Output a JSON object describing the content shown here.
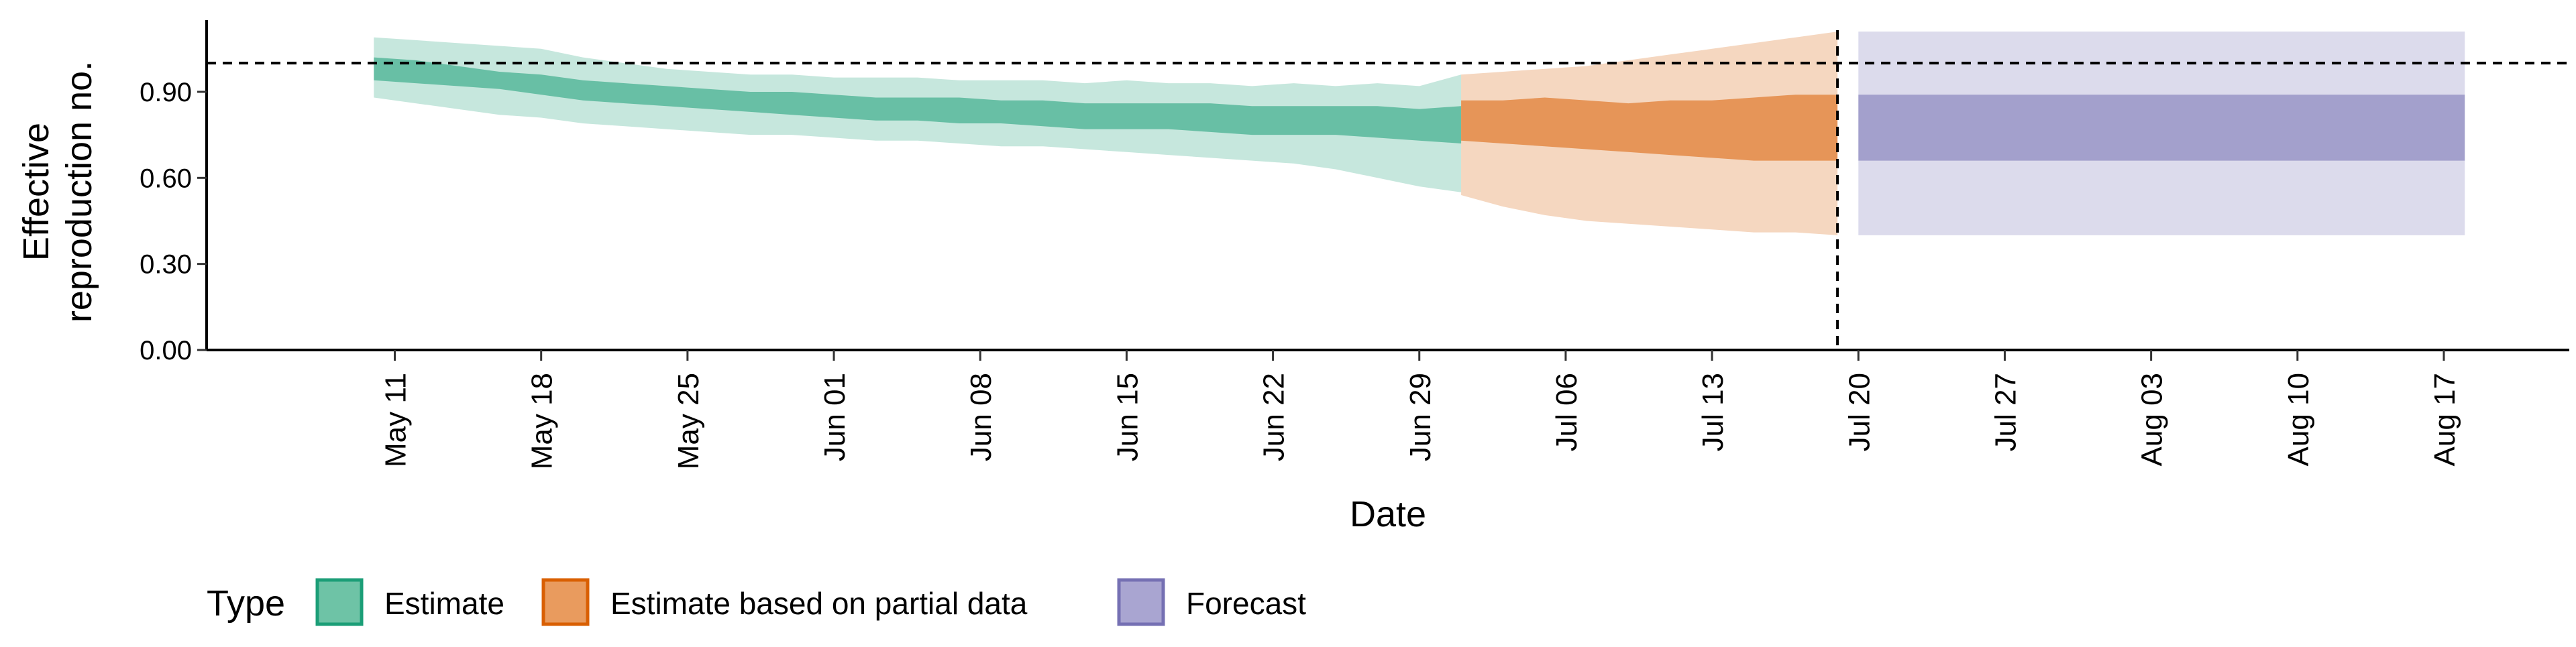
{
  "chart_data": {
    "type": "area",
    "xlabel": "Date",
    "ylabel_lines": [
      "Effective",
      "reproduction no."
    ],
    "ylim": [
      0,
      1.15
    ],
    "xlim": [
      "2020-05-02",
      "2020-08-23"
    ],
    "y_ticks": [
      0,
      0.3,
      0.6,
      0.9
    ],
    "y_tick_labels": [
      "0.00",
      "0.30",
      "0.60",
      "0.90"
    ],
    "x_ticks": [
      "2020-05-11",
      "2020-05-18",
      "2020-05-25",
      "2020-06-01",
      "2020-06-08",
      "2020-06-15",
      "2020-06-22",
      "2020-06-29",
      "2020-07-06",
      "2020-07-13",
      "2020-07-20",
      "2020-07-27",
      "2020-08-03",
      "2020-08-10",
      "2020-08-17"
    ],
    "x_tick_labels": [
      "May 11",
      "May 18",
      "May 25",
      "Jun 01",
      "Jun 08",
      "Jun 15",
      "Jun 22",
      "Jun 29",
      "Jul 06",
      "Jul 13",
      "Jul 20",
      "Jul 27",
      "Aug 03",
      "Aug 10",
      "Aug 17"
    ],
    "reference_line": {
      "y": 1.0,
      "style": "dashed"
    },
    "vertical_line": {
      "x": "2020-07-19",
      "style": "dashed"
    },
    "grid": false,
    "legend": {
      "title": "Type",
      "position": "bottom",
      "items": [
        {
          "label": "Estimate",
          "fill": "#6ec3a6",
          "border": "#1b9e77"
        },
        {
          "label": "Estimate based on partial data",
          "fill": "#e99b5e",
          "border": "#d95f02"
        },
        {
          "label": "Forecast",
          "fill": "#a9a5d1",
          "border": "#7570b3"
        }
      ]
    },
    "series": [
      {
        "name": "Estimate",
        "color": "#1b9e77",
        "x": [
          "2020-05-10",
          "2020-05-12",
          "2020-05-14",
          "2020-05-16",
          "2020-05-18",
          "2020-05-20",
          "2020-05-22",
          "2020-05-24",
          "2020-05-26",
          "2020-05-28",
          "2020-05-30",
          "2020-06-01",
          "2020-06-03",
          "2020-06-05",
          "2020-06-07",
          "2020-06-09",
          "2020-06-11",
          "2020-06-13",
          "2020-06-15",
          "2020-06-17",
          "2020-06-19",
          "2020-06-21",
          "2020-06-23",
          "2020-06-25",
          "2020-06-27",
          "2020-06-29",
          "2020-07-01"
        ],
        "outer_upper": [
          1.09,
          1.08,
          1.07,
          1.06,
          1.05,
          1.02,
          1.0,
          0.98,
          0.97,
          0.96,
          0.96,
          0.95,
          0.95,
          0.95,
          0.94,
          0.94,
          0.94,
          0.93,
          0.94,
          0.93,
          0.93,
          0.92,
          0.93,
          0.92,
          0.93,
          0.92,
          0.96
        ],
        "inner_upper": [
          1.02,
          1.01,
          0.99,
          0.97,
          0.96,
          0.94,
          0.93,
          0.92,
          0.91,
          0.9,
          0.9,
          0.89,
          0.88,
          0.88,
          0.88,
          0.87,
          0.87,
          0.86,
          0.86,
          0.86,
          0.86,
          0.85,
          0.85,
          0.85,
          0.85,
          0.84,
          0.85
        ],
        "inner_lower": [
          0.94,
          0.93,
          0.92,
          0.91,
          0.89,
          0.87,
          0.86,
          0.85,
          0.84,
          0.83,
          0.82,
          0.81,
          0.8,
          0.8,
          0.79,
          0.79,
          0.78,
          0.77,
          0.77,
          0.77,
          0.76,
          0.75,
          0.75,
          0.75,
          0.74,
          0.73,
          0.72
        ],
        "outer_lower": [
          0.88,
          0.86,
          0.84,
          0.82,
          0.81,
          0.79,
          0.78,
          0.77,
          0.76,
          0.75,
          0.75,
          0.74,
          0.73,
          0.73,
          0.72,
          0.71,
          0.71,
          0.7,
          0.69,
          0.68,
          0.67,
          0.66,
          0.65,
          0.63,
          0.6,
          0.57,
          0.55
        ]
      },
      {
        "name": "Estimate based on partial data",
        "color": "#d95f02",
        "x": [
          "2020-07-01",
          "2020-07-03",
          "2020-07-05",
          "2020-07-07",
          "2020-07-09",
          "2020-07-11",
          "2020-07-13",
          "2020-07-15",
          "2020-07-17",
          "2020-07-19"
        ],
        "outer_upper": [
          0.96,
          0.97,
          0.98,
          0.99,
          1.01,
          1.03,
          1.05,
          1.07,
          1.09,
          1.11
        ],
        "inner_upper": [
          0.87,
          0.87,
          0.88,
          0.87,
          0.86,
          0.87,
          0.87,
          0.88,
          0.89,
          0.89
        ],
        "inner_lower": [
          0.73,
          0.72,
          0.71,
          0.7,
          0.69,
          0.68,
          0.67,
          0.66,
          0.66,
          0.66
        ],
        "outer_lower": [
          0.54,
          0.5,
          0.47,
          0.45,
          0.44,
          0.43,
          0.42,
          0.41,
          0.41,
          0.4
        ]
      },
      {
        "name": "Forecast",
        "color": "#7570b3",
        "x": [
          "2020-07-20",
          "2020-08-18"
        ],
        "outer_upper": [
          1.11,
          1.11
        ],
        "inner_upper": [
          0.89,
          0.89
        ],
        "inner_lower": [
          0.66,
          0.66
        ],
        "outer_lower": [
          0.4,
          0.4
        ]
      }
    ]
  }
}
